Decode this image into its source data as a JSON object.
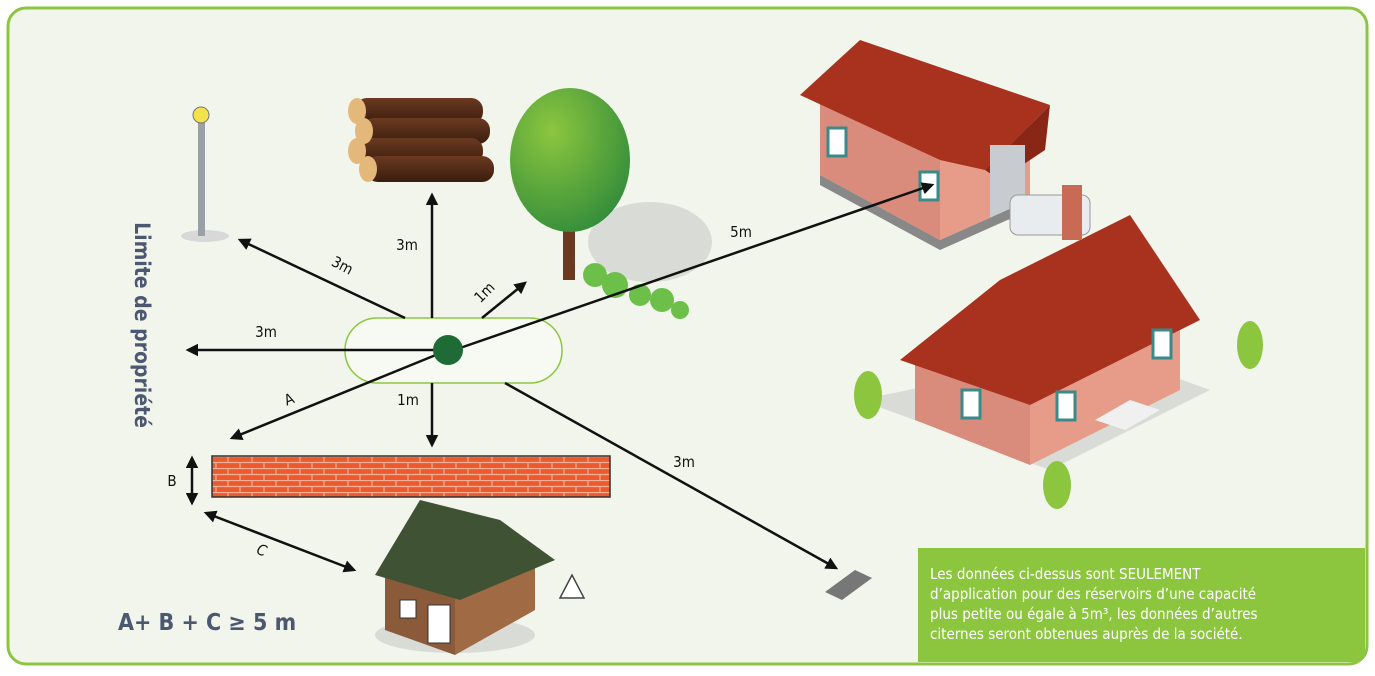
{
  "property_limit": "Limite de propriété",
  "distances": {
    "lamp": "3m",
    "logs": "3m",
    "tree": "1m",
    "house": "5m",
    "boundary": "3m",
    "wall_diagonal": "A",
    "wall_top": "1m",
    "drain": "3m"
  },
  "wall_height": "B",
  "shed_distance": "C",
  "formula": "A+ B + C ≥ 5 m",
  "note": [
    "Les données ci-dessus sont SEULEMENT",
    "d’application pour des réservoirs d’une capacité",
    "plus petite ou égale à 5m³, les données d’autres",
    "citernes seront obtenues auprès de la société."
  ]
}
